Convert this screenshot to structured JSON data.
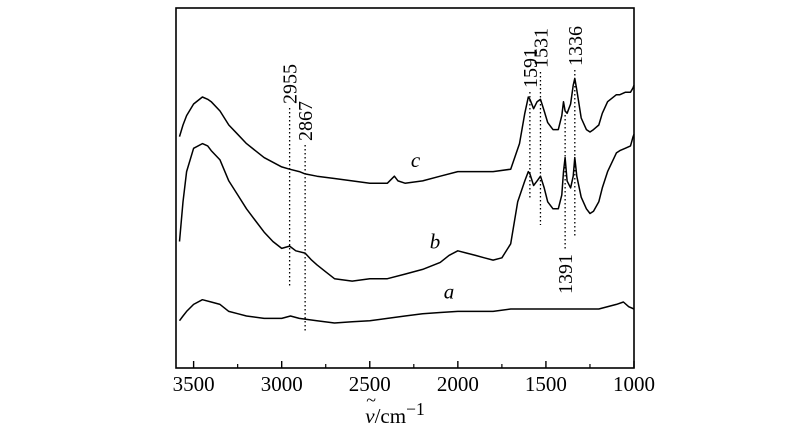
{
  "chart_data": {
    "type": "line",
    "x_reversed": true,
    "xlim": [
      3600,
      1000
    ],
    "x_ticks": [
      "3500",
      "3000",
      "2500",
      "2000",
      "1500",
      "1000"
    ],
    "x_tick_values": [
      3500,
      3000,
      2500,
      2000,
      1500,
      1000
    ],
    "xlabel_symbol": "ν",
    "xlabel_tilde": "~",
    "xlabel_unit": "/cm",
    "xlabel_exp": "−1",
    "ylabel": "",
    "y_ticks_shown": false,
    "grid": false,
    "series": [
      {
        "name": "a",
        "x": [
          3580,
          3560,
          3540,
          3500,
          3450,
          3400,
          3350,
          3300,
          3250,
          3200,
          3100,
          3000,
          2950,
          2900,
          2800,
          2700,
          2600,
          2500,
          2400,
          2300,
          2200,
          2100,
          2000,
          1900,
          1800,
          1700,
          1600,
          1500,
          1400,
          1300,
          1200,
          1100,
          1060,
          1030,
          1000
        ],
        "y": [
          0.04,
          0.06,
          0.08,
          0.11,
          0.13,
          0.12,
          0.11,
          0.08,
          0.07,
          0.06,
          0.05,
          0.05,
          0.06,
          0.05,
          0.04,
          0.03,
          0.035,
          0.04,
          0.05,
          0.06,
          0.07,
          0.075,
          0.08,
          0.08,
          0.08,
          0.09,
          0.09,
          0.09,
          0.09,
          0.09,
          0.09,
          0.11,
          0.12,
          0.1,
          0.09
        ]
      },
      {
        "name": "b",
        "x": [
          3580,
          3560,
          3540,
          3500,
          3450,
          3420,
          3400,
          3350,
          3300,
          3250,
          3200,
          3150,
          3100,
          3050,
          3000,
          2955,
          2920,
          2867,
          2830,
          2800,
          2750,
          2700,
          2600,
          2500,
          2400,
          2300,
          2200,
          2100,
          2050,
          2000,
          1950,
          1900,
          1850,
          1800,
          1750,
          1700,
          1660,
          1620,
          1600,
          1591,
          1570,
          1550,
          1531,
          1510,
          1490,
          1460,
          1430,
          1410,
          1400,
          1391,
          1380,
          1360,
          1345,
          1336,
          1325,
          1300,
          1270,
          1250,
          1230,
          1200,
          1180,
          1150,
          1100,
          1080,
          1050,
          1020,
          1005,
          1000
        ],
        "y": [
          0.38,
          0.55,
          0.68,
          0.78,
          0.8,
          0.79,
          0.77,
          0.73,
          0.64,
          0.58,
          0.52,
          0.47,
          0.42,
          0.38,
          0.35,
          0.36,
          0.34,
          0.33,
          0.3,
          0.28,
          0.25,
          0.22,
          0.21,
          0.22,
          0.22,
          0.24,
          0.26,
          0.29,
          0.32,
          0.34,
          0.33,
          0.32,
          0.31,
          0.3,
          0.31,
          0.37,
          0.55,
          0.64,
          0.68,
          0.67,
          0.62,
          0.64,
          0.66,
          0.61,
          0.55,
          0.52,
          0.52,
          0.58,
          0.68,
          0.74,
          0.64,
          0.61,
          0.66,
          0.74,
          0.66,
          0.57,
          0.52,
          0.5,
          0.51,
          0.55,
          0.61,
          0.68,
          0.76,
          0.77,
          0.78,
          0.79,
          0.83,
          0.84
        ]
      },
      {
        "name": "c",
        "x": [
          3580,
          3560,
          3540,
          3500,
          3450,
          3420,
          3400,
          3350,
          3300,
          3250,
          3200,
          3100,
          3000,
          2955,
          2900,
          2867,
          2800,
          2700,
          2600,
          2500,
          2400,
          2360,
          2340,
          2300,
          2200,
          2100,
          2000,
          1900,
          1800,
          1700,
          1650,
          1620,
          1600,
          1591,
          1570,
          1550,
          1531,
          1510,
          1490,
          1460,
          1430,
          1410,
          1400,
          1391,
          1380,
          1360,
          1345,
          1336,
          1325,
          1300,
          1270,
          1250,
          1230,
          1200,
          1180,
          1150,
          1100,
          1080,
          1050,
          1020,
          1005,
          1000
        ],
        "y": [
          0.83,
          0.88,
          0.92,
          0.97,
          1.0,
          0.99,
          0.98,
          0.94,
          0.88,
          0.84,
          0.8,
          0.74,
          0.7,
          0.69,
          0.68,
          0.67,
          0.66,
          0.65,
          0.64,
          0.63,
          0.63,
          0.66,
          0.64,
          0.63,
          0.64,
          0.66,
          0.68,
          0.68,
          0.68,
          0.69,
          0.8,
          0.93,
          1.0,
          0.99,
          0.95,
          0.98,
          0.99,
          0.94,
          0.89,
          0.86,
          0.86,
          0.92,
          0.98,
          0.94,
          0.93,
          0.97,
          1.05,
          1.08,
          1.03,
          0.91,
          0.86,
          0.85,
          0.86,
          0.88,
          0.93,
          0.98,
          1.01,
          1.01,
          1.02,
          1.02,
          1.04,
          1.05
        ]
      }
    ],
    "peak_markers": [
      {
        "x": 2955,
        "label": "2955"
      },
      {
        "x": 2867,
        "label": "2867"
      },
      {
        "x": 1591,
        "label": "1591"
      },
      {
        "x": 1531,
        "label": "1531"
      },
      {
        "x": 1391,
        "label": "1391"
      },
      {
        "x": 1336,
        "label": "1336"
      }
    ],
    "colors": {
      "line": "#000000",
      "background": "#ffffff"
    }
  }
}
